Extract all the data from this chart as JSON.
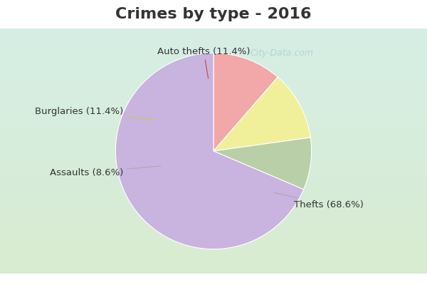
{
  "title": "Crimes by type - 2016",
  "values": [
    68.6,
    11.4,
    11.4,
    8.6
  ],
  "colors": [
    "#c9b3df",
    "#f2a8a8",
    "#f0f09a",
    "#b8cfa8"
  ],
  "labels": [
    "Thefts (68.6%)",
    "Auto thefts (11.4%)",
    "Burglaries (11.4%)",
    "Assaults (8.6%)"
  ],
  "startangle": 121.4,
  "title_fontsize": 16,
  "label_fontsize": 9.5,
  "title_color": "#333333",
  "label_color": "#333333",
  "bg_cyan": "#00e5f5",
  "bg_top_color": "#d6ede5",
  "bg_bottom_color": "#d8ecd0",
  "watermark": "City-Data.com",
  "watermark_color": "#aad4cc",
  "cyan_bar_height": 0.1
}
